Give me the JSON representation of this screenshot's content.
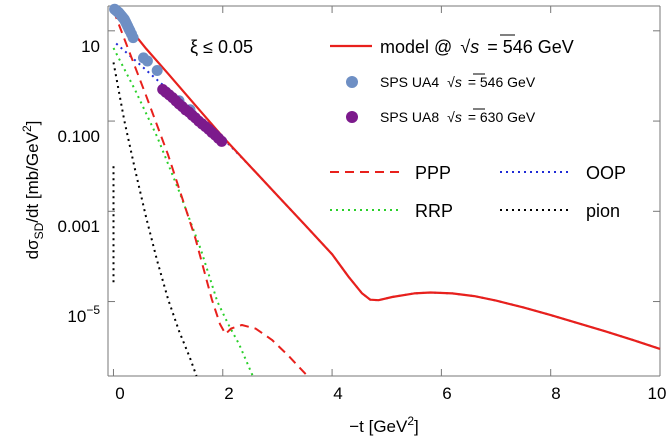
{
  "chart_data": {
    "type": "scatter",
    "xlabel_main": "−t [GeV",
    "xlabel_sup": "2",
    "xlabel_tail": "]",
    "ylabel_pre": "dσ",
    "ylabel_sub": "SD",
    "ylabel_mid": "/dt [mb/GeV",
    "ylabel_sup": "2",
    "ylabel_tail": "]",
    "annotation": "ξ ≤ 0.05",
    "xlim": [
      -0.1,
      10
    ],
    "ylim_log10": [
      -6.65,
      1.55
    ],
    "y_scale": "log",
    "x_ticks": [
      0,
      2,
      4,
      6,
      8,
      10
    ],
    "x_tick_labels": [
      "0",
      "2",
      "4",
      "6",
      "8",
      "10"
    ],
    "y_ticks_log10": [
      1,
      -1,
      -3,
      -5
    ],
    "y_tick_labels": [
      "10",
      "0.100",
      "0.001"
    ],
    "y_tick_label_exp": {
      "base": "10",
      "exp": "−5"
    },
    "legend": {
      "model": {
        "label": "model @",
        "sqrt": "s",
        "value": "=  546 GeV",
        "color": "#e8201c"
      },
      "ua4": {
        "label": "SPS UA4",
        "sqrt": "s",
        "value": "=  546 GeV",
        "color": "#6e8fc4"
      },
      "ua8": {
        "label": "SPS UA8",
        "sqrt": "s",
        "value": "=  630 GeV",
        "color": "#7c1a8c"
      },
      "ppp": {
        "label": "PPP",
        "color": "#e8201c"
      },
      "oop": {
        "label": "OOP",
        "color": "#1f2bd6"
      },
      "rrp": {
        "label": "RRP",
        "color": "#2ad02a"
      },
      "pion": {
        "label": "pion",
        "color": "#000000"
      }
    },
    "series": [
      {
        "name": "model @ √s = 546 GeV",
        "style": "solid",
        "color": "#e8201c",
        "points": [
          [
            0.0,
            1.5
          ],
          [
            0.3,
            1.05
          ],
          [
            0.6,
            0.6
          ],
          [
            1.0,
            0.05
          ],
          [
            1.5,
            -0.65
          ],
          [
            2.0,
            -1.35
          ],
          [
            2.5,
            -2.0
          ],
          [
            3.0,
            -2.65
          ],
          [
            3.5,
            -3.3
          ],
          [
            4.0,
            -3.95
          ],
          [
            4.3,
            -4.45
          ],
          [
            4.55,
            -4.82
          ],
          [
            4.7,
            -4.96
          ],
          [
            4.85,
            -4.97
          ],
          [
            5.1,
            -4.9
          ],
          [
            5.5,
            -4.82
          ],
          [
            5.8,
            -4.8
          ],
          [
            6.2,
            -4.82
          ],
          [
            6.6,
            -4.88
          ],
          [
            7.0,
            -4.98
          ],
          [
            7.5,
            -5.13
          ],
          [
            8.0,
            -5.3
          ],
          [
            8.5,
            -5.48
          ],
          [
            9.0,
            -5.66
          ],
          [
            9.5,
            -5.85
          ],
          [
            10.0,
            -6.05
          ]
        ]
      },
      {
        "name": "OOP",
        "style": "dotted",
        "color": "#1f2bd6",
        "points": [
          [
            0.05,
            0.72
          ],
          [
            2.0,
            -1.38
          ],
          [
            2.5,
            -2.0
          ],
          [
            3.0,
            -2.65
          ],
          [
            3.5,
            -3.3
          ],
          [
            4.0,
            -3.95
          ],
          [
            4.3,
            -4.45
          ],
          [
            4.55,
            -4.82
          ],
          [
            4.7,
            -4.96
          ],
          [
            4.85,
            -4.97
          ],
          [
            5.1,
            -4.9
          ],
          [
            5.5,
            -4.82
          ],
          [
            5.8,
            -4.8
          ],
          [
            6.2,
            -4.82
          ],
          [
            6.6,
            -4.88
          ],
          [
            7.0,
            -4.98
          ],
          [
            7.5,
            -5.13
          ],
          [
            8.0,
            -5.3
          ],
          [
            8.5,
            -5.48
          ],
          [
            9.0,
            -5.66
          ],
          [
            9.5,
            -5.85
          ],
          [
            10.0,
            -6.05
          ]
        ]
      },
      {
        "name": "PPP",
        "style": "dashed",
        "color": "#e8201c",
        "points": [
          [
            0.0,
            1.45
          ],
          [
            0.3,
            0.5
          ],
          [
            0.6,
            -0.45
          ],
          [
            1.0,
            -1.75
          ],
          [
            1.5,
            -3.6
          ],
          [
            1.8,
            -4.95
          ],
          [
            1.95,
            -5.5
          ],
          [
            2.05,
            -5.72
          ],
          [
            2.15,
            -5.6
          ],
          [
            2.35,
            -5.52
          ],
          [
            2.6,
            -5.6
          ],
          [
            2.9,
            -5.85
          ],
          [
            3.2,
            -6.2
          ],
          [
            3.55,
            -6.65
          ]
        ]
      },
      {
        "name": "RRP",
        "style": "dotted",
        "color": "#2ad02a",
        "points": [
          [
            0.0,
            0.62
          ],
          [
            0.4,
            -0.32
          ],
          [
            0.8,
            -1.35
          ],
          [
            1.2,
            -2.55
          ],
          [
            1.6,
            -3.85
          ],
          [
            1.9,
            -5.0
          ],
          [
            2.1,
            -5.5
          ],
          [
            2.3,
            -5.95
          ],
          [
            2.55,
            -6.65
          ]
        ]
      },
      {
        "name": "pion",
        "style": "dotted",
        "color": "#000000",
        "points": [
          [
            0.0,
            0.3
          ],
          [
            0.2,
            -1.0
          ],
          [
            0.4,
            -2.1
          ],
          [
            0.6,
            -3.15
          ],
          [
            0.8,
            -4.1
          ],
          [
            1.0,
            -4.95
          ],
          [
            1.2,
            -5.65
          ],
          [
            1.4,
            -6.25
          ],
          [
            1.52,
            -6.65
          ]
        ]
      },
      {
        "name": "pion-low",
        "style": "dotted",
        "color": "#000000",
        "points": [
          [
            0.0,
            -2.0
          ],
          [
            0.0,
            -4.6
          ]
        ]
      },
      {
        "name": "SPS UA4 √s = 546 GeV",
        "style": "markers",
        "color": "#6e8fc4",
        "points": [
          [
            0.02,
            1.48
          ],
          [
            0.04,
            1.46
          ],
          [
            0.06,
            1.44
          ],
          [
            0.08,
            1.42
          ],
          [
            0.1,
            1.4
          ],
          [
            0.12,
            1.37
          ],
          [
            0.14,
            1.34
          ],
          [
            0.16,
            1.31
          ],
          [
            0.18,
            1.28
          ],
          [
            0.2,
            1.25
          ],
          [
            0.22,
            1.2
          ],
          [
            0.24,
            1.15
          ],
          [
            0.26,
            1.1
          ],
          [
            0.28,
            1.05
          ],
          [
            0.3,
            1.0
          ],
          [
            0.33,
            0.93
          ],
          [
            0.36,
            0.85
          ],
          [
            0.55,
            0.4
          ],
          [
            0.62,
            0.33
          ],
          [
            0.8,
            0.12
          ],
          [
            0.95,
            -0.35
          ],
          [
            1.2,
            -0.55
          ],
          [
            1.4,
            -0.75
          ]
        ]
      },
      {
        "name": "SPS UA8 √s = 630 GeV",
        "style": "markers",
        "color": "#7c1a8c",
        "points": [
          [
            0.9,
            -0.3
          ],
          [
            0.96,
            -0.36
          ],
          [
            1.02,
            -0.42
          ],
          [
            1.08,
            -0.48
          ],
          [
            1.14,
            -0.55
          ],
          [
            1.2,
            -0.62
          ],
          [
            1.26,
            -0.68
          ],
          [
            1.32,
            -0.75
          ],
          [
            1.38,
            -0.8
          ],
          [
            1.44,
            -0.87
          ],
          [
            1.5,
            -0.93
          ],
          [
            1.56,
            -1.0
          ],
          [
            1.62,
            -1.06
          ],
          [
            1.68,
            -1.12
          ],
          [
            1.74,
            -1.18
          ],
          [
            1.8,
            -1.25
          ],
          [
            1.86,
            -1.31
          ],
          [
            1.92,
            -1.38
          ],
          [
            1.98,
            -1.45
          ]
        ]
      }
    ]
  }
}
